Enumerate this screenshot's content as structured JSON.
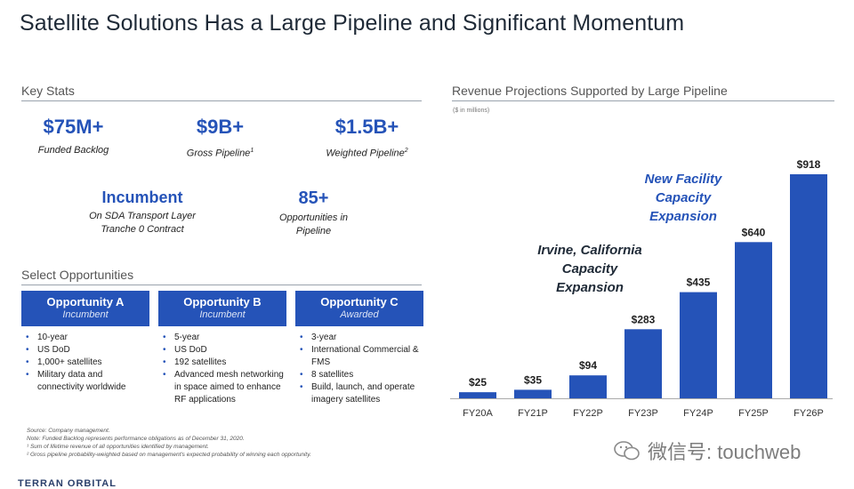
{
  "title": "Satellite Solutions Has a Large Pipeline and Significant Momentum",
  "key_stats": {
    "heading": "Key Stats",
    "items": [
      {
        "value": "$75M+",
        "label": "Funded Backlog",
        "sup": ""
      },
      {
        "value": "$9B+",
        "label": "Gross Pipeline",
        "sup": "1"
      },
      {
        "value": "$1.5B+",
        "label": "Weighted Pipeline",
        "sup": "2"
      },
      {
        "value": "Incumbent",
        "label_line1": "On SDA Transport Layer",
        "label_line2": "Tranche 0 Contract"
      },
      {
        "value": "85+",
        "label_line1": "Opportunities in",
        "label_line2": "Pipeline"
      }
    ]
  },
  "opportunities": {
    "heading": "Select Opportunities",
    "items": [
      {
        "title": "Opportunity A",
        "status": "Incumbent",
        "bullets": [
          "10-year",
          "US DoD",
          "1,000+ satellites",
          "Military data and connectivity worldwide"
        ]
      },
      {
        "title": "Opportunity B",
        "status": "Incumbent",
        "bullets": [
          "5-year",
          "US DoD",
          "192 satellites",
          "Advanced mesh networking in space aimed to enhance RF applications"
        ]
      },
      {
        "title": "Opportunity C",
        "status": "Awarded",
        "bullets": [
          "3-year",
          "International Commercial & FMS",
          "8 satellites",
          "Build, launch, and operate imagery satellites"
        ]
      }
    ]
  },
  "notes": [
    "Source: Company management.",
    "Note: Funded Backlog represents performance obligations as of December 31, 2020.",
    "¹ Sum of lifetime revenue of all opportunities identified by management.",
    "² Gross pipeline probability-weighted based on management's expected probability of winning each opportunity."
  ],
  "logo_text": "TERRAN ORBITAL",
  "watermark": "微信号: touchweb",
  "colors": {
    "accent": "#2553b8"
  },
  "chart_data": {
    "type": "bar",
    "title": "Revenue Projections Supported by Large Pipeline",
    "units_note": "($ in millions)",
    "categories": [
      "FY20A",
      "FY21P",
      "FY22P",
      "FY23P",
      "FY24P",
      "FY25P",
      "FY26P"
    ],
    "values": [
      25,
      35,
      94,
      283,
      435,
      640,
      918
    ],
    "value_labels": [
      "$25",
      "$35",
      "$94",
      "$283",
      "$435",
      "$640",
      "$918"
    ],
    "ylim": [
      0,
      918
    ],
    "grid": false,
    "annotations": [
      {
        "lines": [
          "Irvine, California",
          "Capacity",
          "Expansion"
        ],
        "color": "#1f2a37",
        "near_category": "FY22P"
      },
      {
        "lines": [
          "New Facility",
          "Capacity",
          "Expansion"
        ],
        "color": "#2553b8",
        "near_category": "FY25P"
      }
    ]
  }
}
